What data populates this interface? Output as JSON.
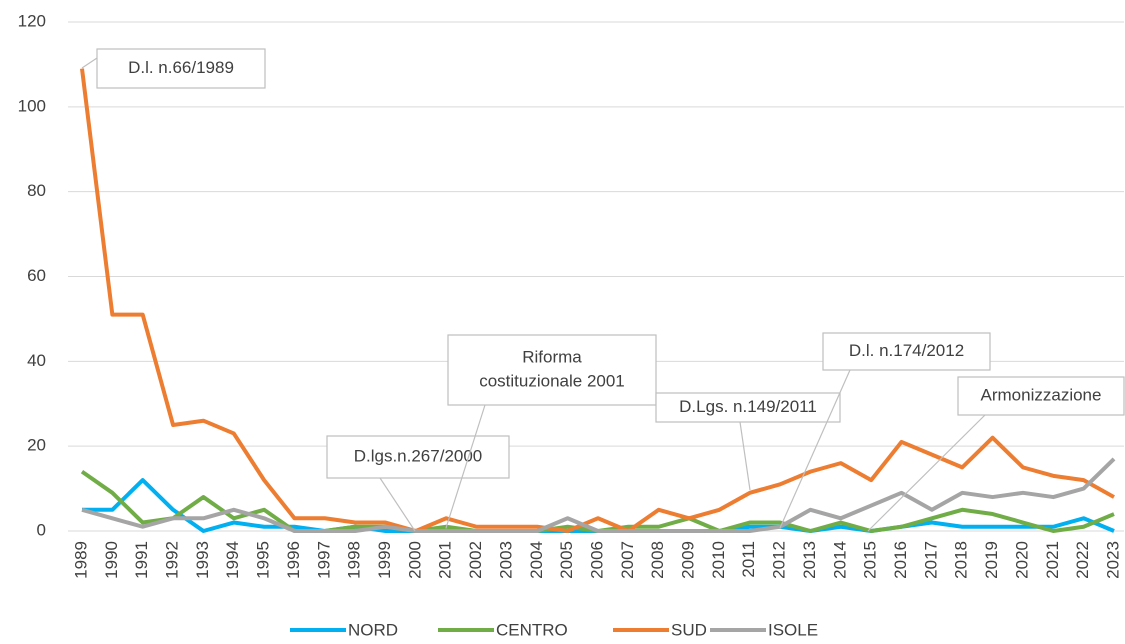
{
  "chart_data": {
    "type": "line",
    "categories": [
      "1989",
      "1990",
      "1991",
      "1992",
      "1993",
      "1994",
      "1995",
      "1996",
      "1997",
      "1998",
      "1999",
      "2000",
      "2001",
      "2002",
      "2003",
      "2004",
      "2005",
      "2006",
      "2007",
      "2008",
      "2009",
      "2010",
      "2011",
      "2012",
      "2013",
      "2014",
      "2015",
      "2016",
      "2017",
      "2018",
      "2019",
      "2020",
      "2021",
      "2022",
      "2023"
    ],
    "series": [
      {
        "name": "NORD",
        "color": "#00b0f0",
        "values": [
          5,
          5,
          12,
          5,
          0,
          2,
          1,
          1,
          0,
          1,
          0,
          0,
          0,
          0,
          0,
          0,
          0,
          0,
          0,
          0,
          0,
          0,
          1,
          1,
          0,
          1,
          0,
          1,
          2,
          1,
          1,
          1,
          1,
          3,
          0
        ]
      },
      {
        "name": "CENTRO",
        "color": "#70ad47",
        "values": [
          14,
          9,
          2,
          3,
          8,
          3,
          5,
          0,
          0,
          1,
          1,
          0,
          1,
          0,
          0,
          0,
          1,
          0,
          1,
          1,
          3,
          0,
          2,
          2,
          0,
          2,
          0,
          1,
          3,
          5,
          4,
          2,
          0,
          1,
          4
        ]
      },
      {
        "name": "SUD",
        "color": "#ed7d31",
        "values": [
          109,
          51,
          51,
          25,
          26,
          23,
          12,
          3,
          3,
          2,
          2,
          0,
          3,
          1,
          1,
          1,
          0,
          3,
          0,
          5,
          3,
          5,
          9,
          11,
          14,
          16,
          12,
          21,
          18,
          15,
          22,
          15,
          13,
          12,
          8
        ]
      },
      {
        "name": "ISOLE",
        "color": "#a5a5a5",
        "values": [
          5,
          3,
          1,
          3,
          3,
          5,
          3,
          0,
          0,
          0,
          1,
          0,
          0,
          0,
          0,
          0,
          3,
          0,
          0,
          0,
          0,
          0,
          0,
          1,
          5,
          3,
          6,
          9,
          5,
          9,
          8,
          9,
          8,
          10,
          17
        ]
      }
    ],
    "ylim": [
      0,
      120
    ],
    "yticks": [
      0,
      20,
      40,
      60,
      80,
      100,
      120
    ],
    "grid": true,
    "legend": "bottom",
    "annotations": [
      {
        "lines": [
          "D.l. n.66/1989"
        ]
      },
      {
        "lines": [
          "D.lgs.n.267/2000"
        ]
      },
      {
        "lines": [
          "Riforma",
          "costituzionale 2001"
        ]
      },
      {
        "lines": [
          "D.Lgs. n.149/2011"
        ]
      },
      {
        "lines": [
          "D.l. n.174/2012"
        ]
      },
      {
        "lines": [
          "Armonizzazione"
        ]
      }
    ]
  }
}
